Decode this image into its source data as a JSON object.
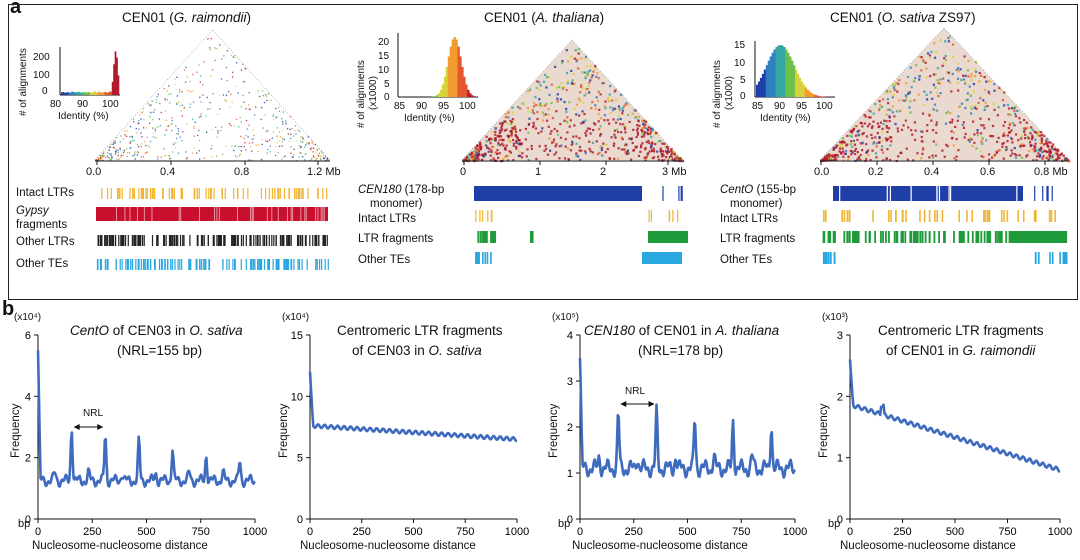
{
  "figure": {
    "panel_a": {
      "letter": "a",
      "colors": {
        "ltr_intact": "#f2b431",
        "gypsy": "#c8102e",
        "other_ltr": "#222222",
        "other_te": "#29a7e1",
        "monomer": "#1f3ea8",
        "ltr_fragment": "#1f9a3a"
      },
      "sub1": {
        "title_prefix": "CEN01 (",
        "title_species": "G. raimondii",
        "title_suffix": ")",
        "hist": {
          "ylabel": "# of alignments",
          "yticks": [
            "200",
            "100",
            "0"
          ],
          "xticks": [
            "80",
            "90",
            "100"
          ],
          "xlabel": "Identity (%)"
        },
        "axis": {
          "ticks": [
            "0.0",
            "0.4",
            "0.8",
            "1.2 Mb"
          ]
        },
        "tracks": {
          "intact": "Intact LTRs",
          "gypsy": "Gypsy",
          "fragments": "fragments",
          "other_ltr": "Other LTRs",
          "other_te": "Other TEs"
        }
      },
      "sub2": {
        "title_prefix": "CEN01 (",
        "title_species": "A. thaliana",
        "title_suffix": ")",
        "hist": {
          "ylabel1": "# of alignments",
          "ylabel2": "(x1000)",
          "yticks": [
            "20",
            "15",
            "10",
            "5",
            "0"
          ],
          "xticks": [
            "85",
            "90",
            "95",
            "100"
          ],
          "xlabel": "Identity (%)"
        },
        "axis": {
          "ticks": [
            "0",
            "1",
            "2",
            "3 Mb"
          ]
        },
        "tracks": {
          "monomer_name": "CEN180",
          "monomer_rest": " (178-bp",
          "monomer_line2": "monomer)",
          "intact": "Intact LTRs",
          "ltr_frag": "LTR fragments",
          "other_te": "Other TEs"
        }
      },
      "sub3": {
        "title_prefix": "CEN01 (",
        "title_species": "O. sativa",
        "title_suffix": " ZS97)",
        "hist": {
          "ylabel1": "# of alignments",
          "ylabel2": "(x1000)",
          "yticks": [
            "15",
            "10",
            "5",
            "0"
          ],
          "xticks": [
            "85",
            "90",
            "95",
            "100"
          ],
          "xlabel": "Identity (%)"
        },
        "axis": {
          "ticks": [
            "0.0",
            "0.2",
            "0.4",
            "0.6",
            "0.8 Mb"
          ]
        },
        "tracks": {
          "monomer_name": "CentO",
          "monomer_rest": " (155-bp",
          "monomer_line2": "monomer)",
          "intact": "Intact LTRs",
          "ltr_frag": "LTR fragments",
          "other_te": "Other TEs"
        }
      }
    },
    "panel_b": {
      "letter": "b",
      "line_color": "#3f6bbf",
      "xlabel": "Nucleosome-nucleosome distance",
      "ylabel": "Frequency",
      "bp": "bp",
      "xticks": [
        "0",
        "250",
        "500",
        "750",
        "1000"
      ],
      "nrl_label": "NRL"
    }
  },
  "chart_data": [
    {
      "type": "line",
      "title_line1_italic": "CentO",
      "title_line1_rest": " of CEN03 in ",
      "title_line1_species": "O. sativa",
      "title_line2": "(NRL=155 bp)",
      "multiplier": "(x10⁴)",
      "xlabel": "Nucleosome-nucleosome distance",
      "ylabel": "Frequency",
      "xlim": [
        0,
        1000
      ],
      "ylim": [
        0,
        6
      ],
      "yticks": [
        "0",
        "2",
        "4",
        "6"
      ],
      "pattern": {
        "baseline": 1.25,
        "first_peak": 5.5,
        "nrl": 155,
        "peaks": [
          3.0,
          2.75,
          2.55,
          2.3,
          2.1,
          1.9
        ]
      }
    },
    {
      "type": "line",
      "title_line1": "Centromeric LTR fragments",
      "title_line2_rest": "of CEN03 in ",
      "title_line2_species": "O. sativa",
      "multiplier": "(x10⁴)",
      "xlabel": "Nucleosome-nucleosome distance",
      "ylabel": "Frequency",
      "xlim": [
        0,
        1000
      ],
      "ylim": [
        0,
        15
      ],
      "yticks": [
        "0",
        "5",
        "10",
        "15"
      ],
      "pattern": {
        "start": 12.0,
        "plateau_start": 7.6,
        "end": 6.5
      }
    },
    {
      "type": "line",
      "title_line1_italic": "CEN180",
      "title_line1_rest": " of CEN01 in ",
      "title_line1_species": "A. thaliana",
      "title_line2": "(NRL=178 bp)",
      "multiplier": "(x10⁵)",
      "xlabel": "Nucleosome-nucleosome distance",
      "ylabel": "Frequency",
      "xlim": [
        0,
        1000
      ],
      "ylim": [
        0,
        4
      ],
      "yticks": [
        "0",
        "1",
        "2",
        "3",
        "4"
      ],
      "pattern": {
        "baseline": 1.1,
        "first_peak": 3.5,
        "nrl": 178,
        "peaks": [
          2.3,
          2.3,
          2.2,
          2.15,
          2.1
        ]
      }
    },
    {
      "type": "line",
      "title_line1": "Centromeric LTR fragments",
      "title_line2_rest": "of CEN01 in ",
      "title_line2_species": "G. raimondii",
      "multiplier": "(x10³)",
      "xlabel": "Nucleosome-nucleosome distance",
      "ylabel": "Frequency",
      "xlim": [
        0,
        1000
      ],
      "ylim": [
        0,
        3
      ],
      "yticks": [
        "0",
        "1",
        "2",
        "3"
      ],
      "pattern": {
        "start": 2.6,
        "plateau_start": 1.85,
        "end": 0.8
      }
    }
  ]
}
